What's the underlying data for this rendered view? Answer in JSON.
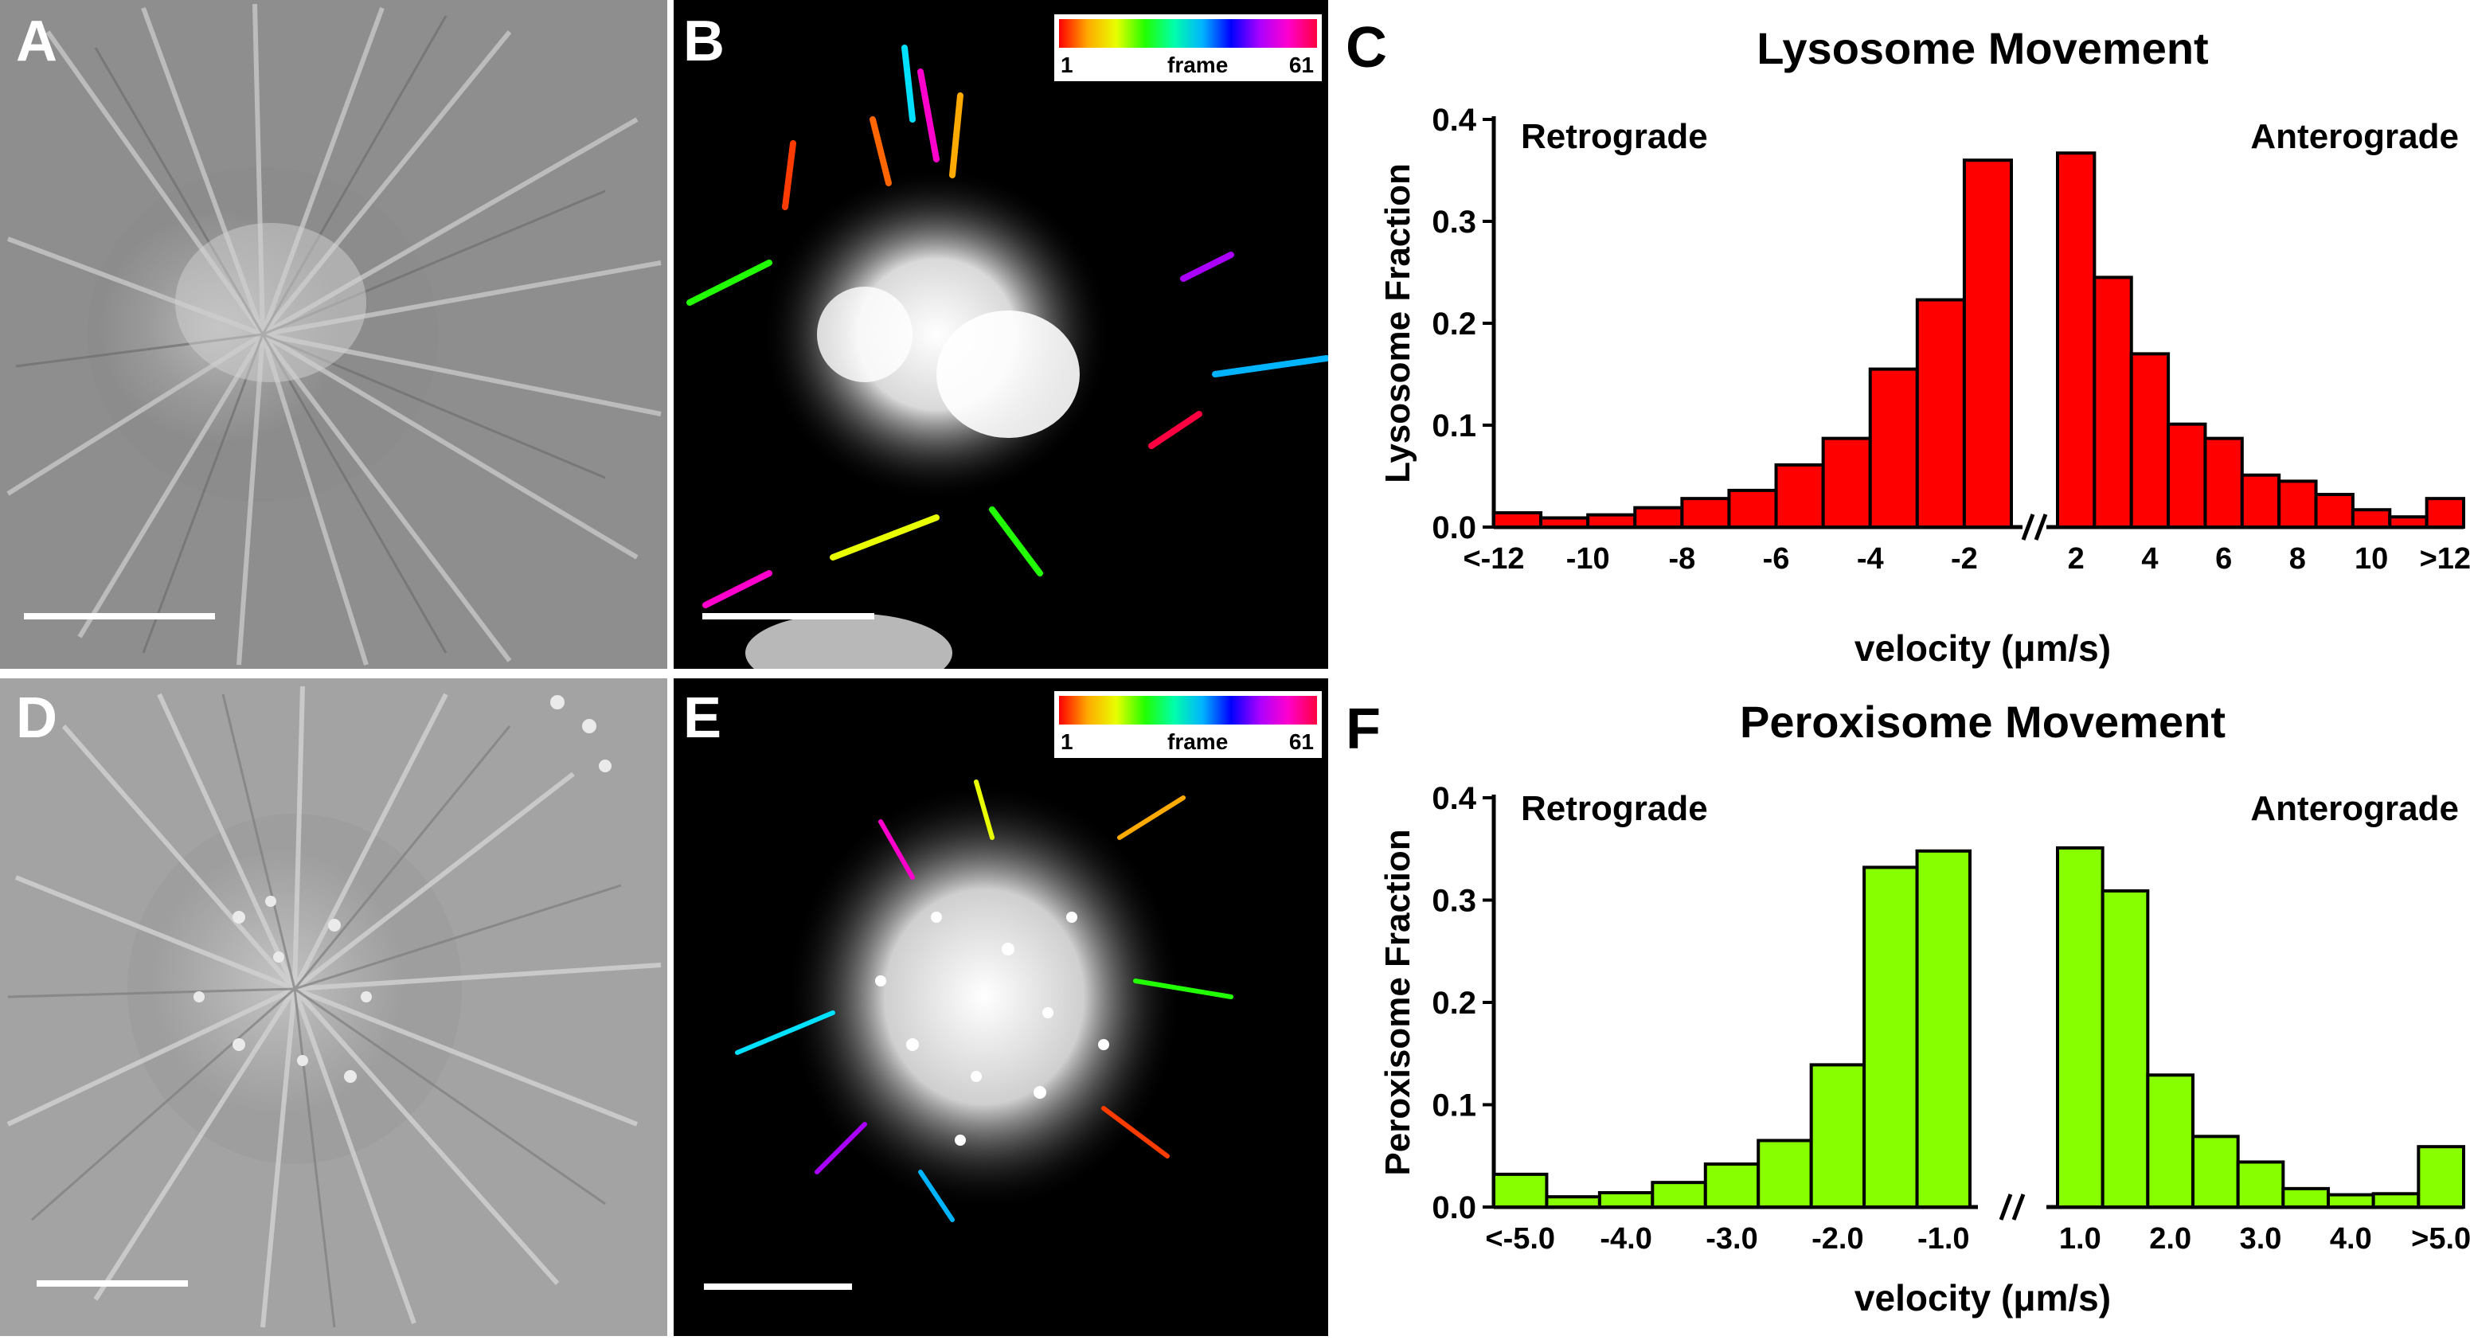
{
  "panels": {
    "A": {
      "label": "A"
    },
    "B": {
      "label": "B",
      "colorbar": {
        "start": "1",
        "middle": "frame",
        "end": "61"
      }
    },
    "C": {
      "label": "C"
    },
    "D": {
      "label": "D"
    },
    "E": {
      "label": "E",
      "colorbar": {
        "start": "1",
        "middle": "frame",
        "end": "61"
      }
    },
    "F": {
      "label": "F"
    }
  },
  "colors": {
    "lysosome_bar": "#ff0000",
    "peroxisome_bar": "#88ff00",
    "axis": "#000000"
  },
  "chart_data": [
    {
      "type": "bar",
      "title": "Lysosome Movement",
      "ylabel": "Lysosome Fraction",
      "xlabel": "velocity (μm/s)",
      "ylim": [
        0,
        0.4
      ],
      "yticks": [
        "0.0",
        "0.1",
        "0.2",
        "0.3",
        "0.4"
      ],
      "left_annotation": "Retrograde",
      "right_annotation": "Anterograde",
      "left_tick_labels": [
        "<-12",
        "-10",
        "-8",
        "-6",
        "-4",
        "-2"
      ],
      "right_tick_labels": [
        "2",
        "4",
        "6",
        "8",
        "10",
        ">12"
      ],
      "left_values": [
        0.014,
        0.009,
        0.012,
        0.019,
        0.028,
        0.036,
        0.061,
        0.087,
        0.155,
        0.223,
        0.36
      ],
      "right_values": [
        0.367,
        0.245,
        0.17,
        0.101,
        0.087,
        0.051,
        0.045,
        0.032,
        0.017,
        0.01,
        0.028
      ]
    },
    {
      "type": "bar",
      "title": "Peroxisome Movement",
      "ylabel": "Peroxisome Fraction",
      "xlabel": "velocity (μm/s)",
      "ylim": [
        0,
        0.4
      ],
      "yticks": [
        "0.0",
        "0.1",
        "0.2",
        "0.3",
        "0.4"
      ],
      "left_annotation": "Retrograde",
      "right_annotation": "Anterograde",
      "left_tick_labels": [
        "<-5.0",
        "-4.0",
        "-3.0",
        "-2.0",
        "-1.0"
      ],
      "right_tick_labels": [
        "1.0",
        "2.0",
        "3.0",
        "4.0",
        ">5.0"
      ],
      "left_values": [
        0.032,
        0.01,
        0.014,
        0.024,
        0.042,
        0.065,
        0.139,
        0.332,
        0.348
      ],
      "right_values": [
        0.351,
        0.309,
        0.129,
        0.069,
        0.044,
        0.018,
        0.012,
        0.013,
        0.059
      ]
    }
  ]
}
